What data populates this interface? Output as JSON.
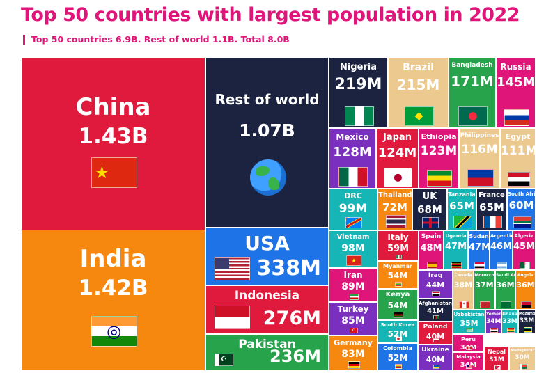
{
  "page": {
    "title": "Top 50 countries with largest population in 2022",
    "subtitle": "Top 50 countries 6.9B. Rest of world 1.1B. Total 8.0B"
  },
  "chart_data": {
    "type": "treemap",
    "title": "Top 50 countries with largest population in 2022",
    "subtitle": "Top 50 countries 6.9B. Rest of world 1.1B. Total 8.0B",
    "unit": "people",
    "tiles": [
      {
        "name": "China",
        "label": "1.43B",
        "value": 1430000000,
        "color": "#e01a3c"
      },
      {
        "name": "India",
        "label": "1.42B",
        "value": 1420000000,
        "color": "#f7880f"
      },
      {
        "name": "Rest of world",
        "label": "1.07B",
        "value": 1070000000,
        "color": "#1b2340"
      },
      {
        "name": "USA",
        "label": "338M",
        "value": 338000000,
        "color": "#1e74e6"
      },
      {
        "name": "Indonesia",
        "label": "276M",
        "value": 276000000,
        "color": "#e01a3c"
      },
      {
        "name": "Pakistan",
        "label": "236M",
        "value": 236000000,
        "color": "#27a44b"
      },
      {
        "name": "Nigeria",
        "label": "219M",
        "value": 219000000,
        "color": "#1b2340"
      },
      {
        "name": "Brazil",
        "label": "215M",
        "value": 215000000,
        "color": "#ecc98f"
      },
      {
        "name": "Bangladesh",
        "label": "171M",
        "value": 171000000,
        "color": "#27a44b"
      },
      {
        "name": "Russia",
        "label": "145M",
        "value": 145000000,
        "color": "#e0157a"
      },
      {
        "name": "Mexico",
        "label": "128M",
        "value": 128000000,
        "color": "#7b2fbf"
      },
      {
        "name": "Japan",
        "label": "124M",
        "value": 124000000,
        "color": "#e01a3c"
      },
      {
        "name": "Ethiopia",
        "label": "123M",
        "value": 123000000,
        "color": "#e0157a"
      },
      {
        "name": "Philippines",
        "label": "116M",
        "value": 116000000,
        "color": "#ecc98f"
      },
      {
        "name": "Egypt",
        "label": "111M",
        "value": 111000000,
        "color": "#ecc98f"
      },
      {
        "name": "DRC",
        "label": "99M",
        "value": 99000000,
        "color": "#17b6b6"
      },
      {
        "name": "Thailand",
        "label": "72M",
        "value": 72000000,
        "color": "#f7880f"
      },
      {
        "name": "UK",
        "label": "68M",
        "value": 68000000,
        "color": "#1b2340"
      },
      {
        "name": "Tanzania",
        "label": "65M",
        "value": 65000000,
        "color": "#17b6b6"
      },
      {
        "name": "France",
        "label": "65M",
        "value": 65000000,
        "color": "#1b2340"
      },
      {
        "name": "South Africa",
        "label": "60M",
        "value": 60000000,
        "color": "#1e74e6"
      },
      {
        "name": "Vietnam",
        "label": "98M",
        "value": 98000000,
        "color": "#17b6b6"
      },
      {
        "name": "Italy",
        "label": "59M",
        "value": 59000000,
        "color": "#e01a3c"
      },
      {
        "name": "Spain",
        "label": "48M",
        "value": 48000000,
        "color": "#e0157a"
      },
      {
        "name": "Uganda",
        "label": "47M",
        "value": 47000000,
        "color": "#17b6b6"
      },
      {
        "name": "Sudan",
        "label": "47M",
        "value": 47000000,
        "color": "#1e74e6"
      },
      {
        "name": "Argentina",
        "label": "46M",
        "value": 46000000,
        "color": "#1e74e6"
      },
      {
        "name": "Algeria",
        "label": "45M",
        "value": 45000000,
        "color": "#e0157a"
      },
      {
        "name": "Iran",
        "label": "89M",
        "value": 89000000,
        "color": "#e0157a"
      },
      {
        "name": "Myanmar",
        "label": "54M",
        "value": 54000000,
        "color": "#f7880f"
      },
      {
        "name": "Iraq",
        "label": "44M",
        "value": 44000000,
        "color": "#7b2fbf"
      },
      {
        "name": "Canada",
        "label": "38M",
        "value": 38000000,
        "color": "#ecc98f"
      },
      {
        "name": "Morocco",
        "label": "37M",
        "value": 37000000,
        "color": "#27a44b"
      },
      {
        "name": "Saudi Arabia",
        "label": "36M",
        "value": 36000000,
        "color": "#27a44b"
      },
      {
        "name": "Angola",
        "label": "36M",
        "value": 36000000,
        "color": "#f7880f"
      },
      {
        "name": "Kenya",
        "label": "54M",
        "value": 54000000,
        "color": "#27a44b"
      },
      {
        "name": "Afghanistan",
        "label": "41M",
        "value": 41000000,
        "color": "#1b2340"
      },
      {
        "name": "Turkey",
        "label": "85M",
        "value": 85000000,
        "color": "#7b2fbf"
      },
      {
        "name": "South Korea",
        "label": "52M",
        "value": 52000000,
        "color": "#17b6b6"
      },
      {
        "name": "Poland",
        "label": "40M",
        "value": 40000000,
        "color": "#e01a3c"
      },
      {
        "name": "Uzbekistan",
        "label": "35M",
        "value": 35000000,
        "color": "#17b6b6"
      },
      {
        "name": "Yemen",
        "label": "34M",
        "value": 34000000,
        "color": "#7b2fbf"
      },
      {
        "name": "Ghana",
        "label": "33M",
        "value": 33000000,
        "color": "#17b6b6"
      },
      {
        "name": "Mozambique",
        "label": "33M",
        "value": 33000000,
        "color": "#1b2340"
      },
      {
        "name": "Peru",
        "label": "34M",
        "value": 34000000,
        "color": "#e0157a"
      },
      {
        "name": "Germany",
        "label": "83M",
        "value": 83000000,
        "color": "#f7880f"
      },
      {
        "name": "Colombia",
        "label": "52M",
        "value": 52000000,
        "color": "#1e74e6"
      },
      {
        "name": "Ukraine",
        "label": "40M",
        "value": 40000000,
        "color": "#7b2fbf"
      },
      {
        "name": "Malaysia",
        "label": "34M",
        "value": 34000000,
        "color": "#e0157a"
      },
      {
        "name": "Nepal",
        "label": "31M",
        "value": 31000000,
        "color": "#e01a3c"
      },
      {
        "name": "Madagascar",
        "label": "30M",
        "value": 30000000,
        "color": "#ecc98f"
      }
    ]
  }
}
